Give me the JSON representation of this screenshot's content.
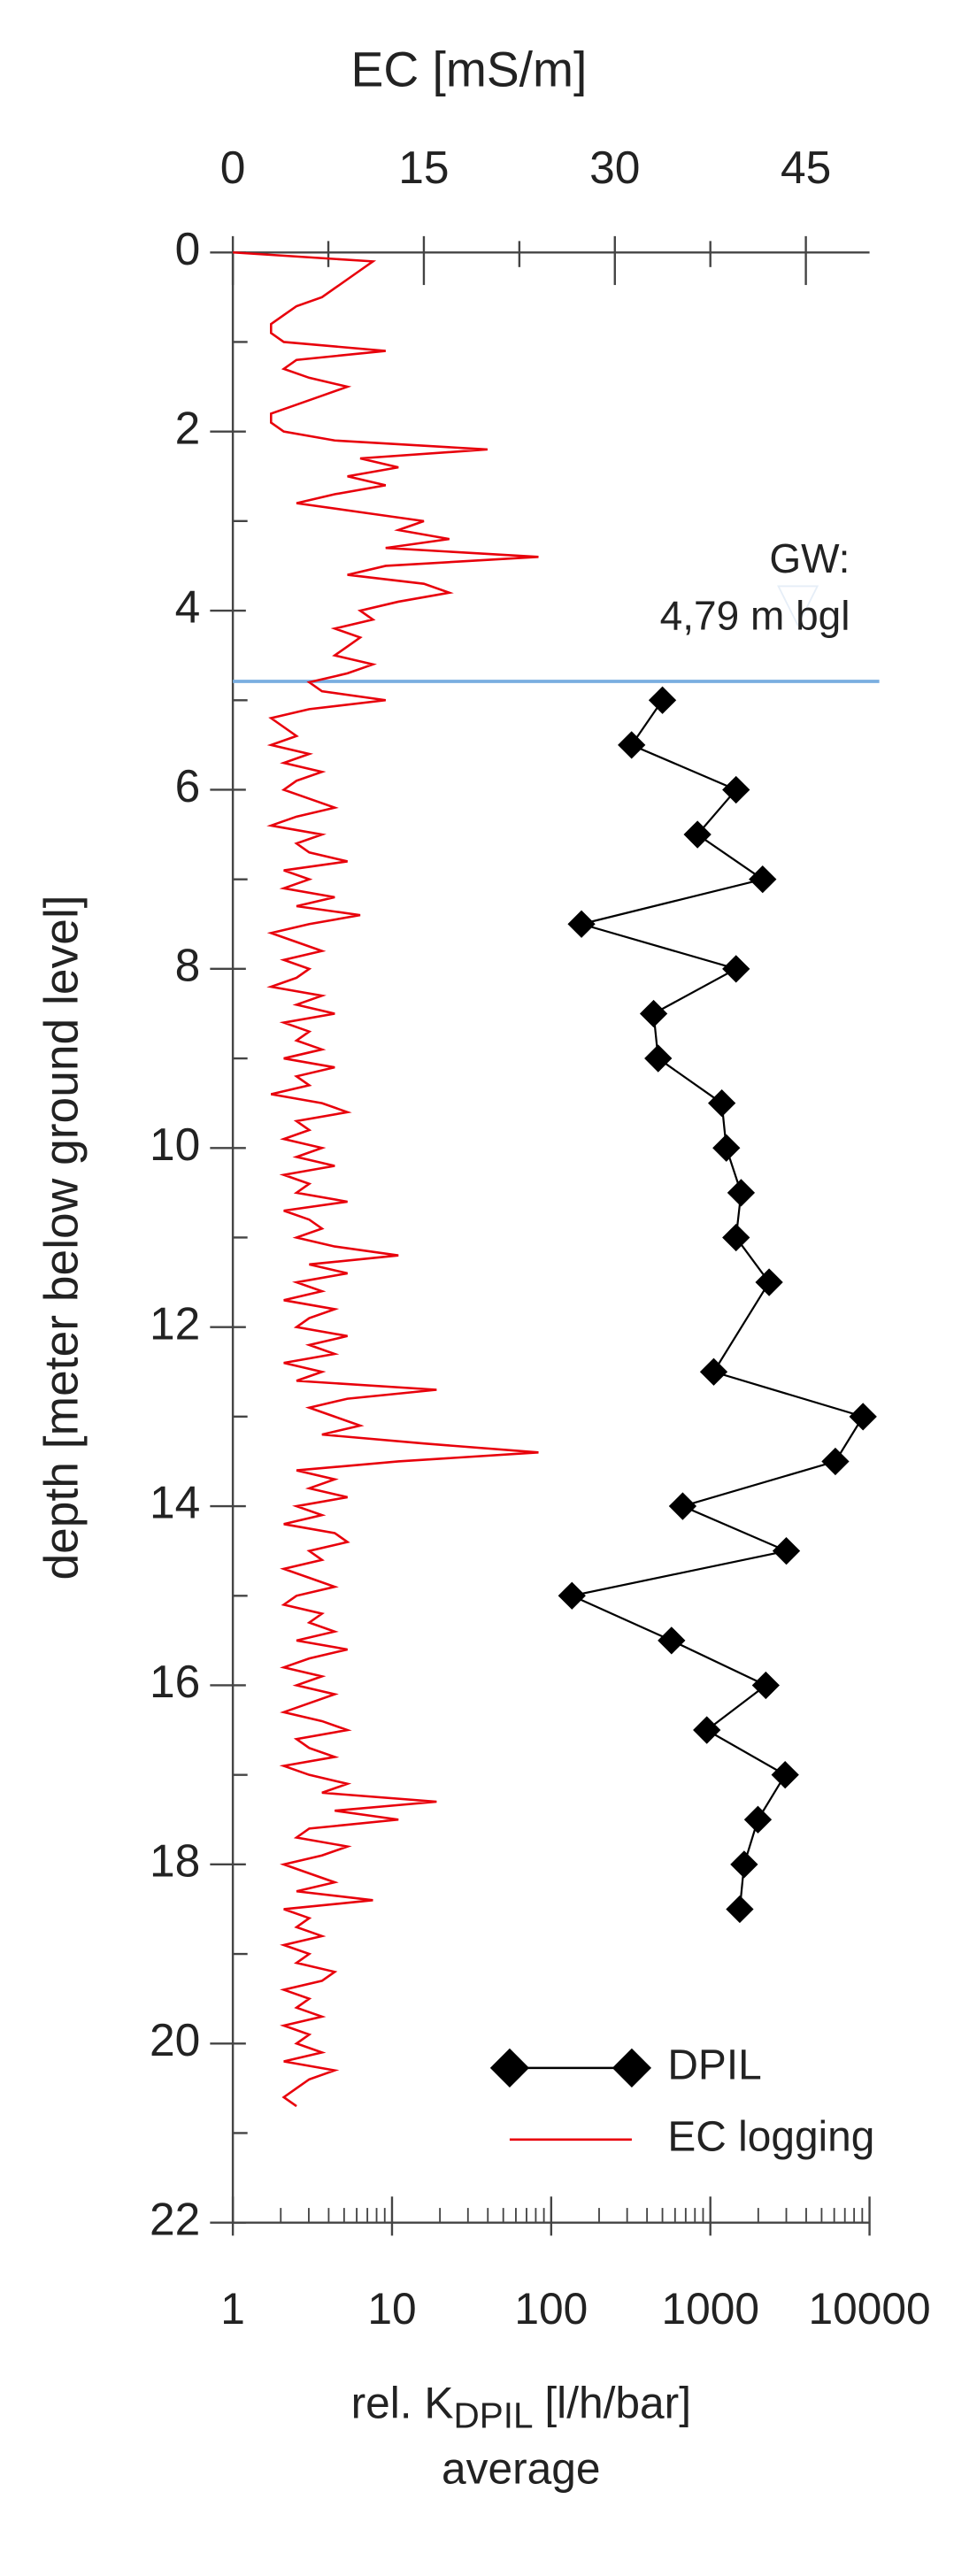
{
  "chart_data": {
    "type": "depth-profile",
    "title": "EC [mS/m]",
    "title_color": "#e8000b",
    "y_label": "depth [meter below ground level]",
    "x2_label": {
      "main": "rel. K",
      "sub": "DPIL",
      "unit": "[l/h/bar]",
      "line2": "average"
    },
    "ylim": [
      0,
      22
    ],
    "yticks": [
      0,
      2,
      4,
      6,
      8,
      10,
      12,
      14,
      16,
      18,
      20,
      22
    ],
    "yminorticks": [
      1,
      3,
      5,
      7,
      9,
      11,
      13,
      15,
      17,
      19,
      21
    ],
    "xlim": [
      0,
      50
    ],
    "xticks": [
      0,
      15,
      30,
      45
    ],
    "xminorticks": [
      7.5,
      22.5,
      37.5
    ],
    "x2lim": [
      1,
      10000
    ],
    "x2_log": true,
    "x2ticks": [
      1,
      10,
      100,
      1000,
      10000
    ],
    "x2minorticks": [
      2,
      3,
      4,
      5,
      6,
      7,
      8,
      9,
      20,
      30,
      40,
      50,
      60,
      70,
      80,
      90,
      200,
      300,
      400,
      500,
      600,
      700,
      800,
      900,
      2000,
      3000,
      4000,
      5000,
      6000,
      7000,
      8000,
      9000
    ],
    "legend": "lower right",
    "groundwater": {
      "depth": 4.79,
      "label": [
        "GW:",
        "4,79 m bgl"
      ],
      "color": "#7aaee0"
    },
    "series": [
      {
        "name": "DPIL",
        "color": "#000000",
        "axis": "x2",
        "marker": "diamond",
        "depth": [
          5,
          5.5,
          6,
          6.5,
          7,
          7.5,
          8,
          8.5,
          9,
          9.5,
          10,
          10.5,
          11,
          11.5,
          12.5,
          13,
          13.5,
          14,
          14.5,
          15,
          15.5,
          16,
          16.5,
          17,
          17.5,
          18,
          18.5
        ],
        "values": [
          500,
          320,
          1450,
          830,
          2130,
          155,
          1450,
          440,
          470,
          1180,
          1260,
          1560,
          1450,
          2340,
          1050,
          9100,
          6100,
          670,
          3000,
          135,
          570,
          2230,
          950,
          2950,
          1990,
          1630,
          1530
        ]
      },
      {
        "name": "EC logging",
        "color": "#e8000b",
        "axis": "x",
        "marker": "none",
        "depth": [
          0,
          0.1,
          0.2,
          0.3,
          0.4,
          0.5,
          0.6,
          0.7,
          0.8,
          0.9,
          1,
          1.1,
          1.2,
          1.3,
          1.4,
          1.5,
          1.6,
          1.7,
          1.8,
          1.9,
          2,
          2.1,
          2.2,
          2.3,
          2.4,
          2.5,
          2.6,
          2.7,
          2.8,
          2.9,
          3,
          3.1,
          3.2,
          3.3,
          3.4,
          3.5,
          3.6,
          3.7,
          3.8,
          3.9,
          4,
          4.1,
          4.2,
          4.3,
          4.4,
          4.5,
          4.6,
          4.7,
          4.8,
          4.9,
          5,
          5.1,
          5.2,
          5.3,
          5.4,
          5.5,
          5.6,
          5.7,
          5.8,
          5.9,
          6,
          6.1,
          6.2,
          6.3,
          6.4,
          6.5,
          6.6,
          6.7,
          6.8,
          6.9,
          7,
          7.1,
          7.2,
          7.3,
          7.4,
          7.5,
          7.6,
          7.7,
          7.8,
          7.9,
          8,
          8.1,
          8.2,
          8.3,
          8.4,
          8.5,
          8.6,
          8.7,
          8.8,
          8.9,
          9,
          9.1,
          9.2,
          9.3,
          9.4,
          9.5,
          9.6,
          9.7,
          9.8,
          9.9,
          10,
          10.1,
          10.2,
          10.3,
          10.4,
          10.5,
          10.6,
          10.7,
          10.8,
          10.9,
          11,
          11.1,
          11.2,
          11.3,
          11.4,
          11.5,
          11.6,
          11.7,
          11.8,
          11.9,
          12,
          12.1,
          12.2,
          12.3,
          12.4,
          12.5,
          12.6,
          12.7,
          12.8,
          12.9,
          13,
          13.1,
          13.2,
          13.3,
          13.4,
          13.5,
          13.6,
          13.7,
          13.8,
          13.9,
          14,
          14.1,
          14.2,
          14.3,
          14.4,
          14.5,
          14.6,
          14.7,
          14.8,
          14.9,
          15,
          15.1,
          15.2,
          15.3,
          15.4,
          15.5,
          15.6,
          15.7,
          15.8,
          15.9,
          16,
          16.1,
          16.2,
          16.3,
          16.4,
          16.5,
          16.6,
          16.7,
          16.8,
          16.9,
          17,
          17.1,
          17.2,
          17.3,
          17.4,
          17.5,
          17.6,
          17.7,
          17.8,
          17.9,
          18,
          18.1,
          18.2,
          18.3,
          18.4,
          18.5,
          18.6,
          18.7,
          18.8,
          18.9,
          19,
          19.1,
          19.2,
          19.3,
          19.4,
          19.5,
          19.6,
          19.7,
          19.8,
          19.9,
          20,
          20.1,
          20.2,
          20.3,
          20.4,
          20.5,
          20.6,
          20.7
        ],
        "values": [
          0,
          11,
          10,
          9,
          8,
          7,
          5,
          4,
          3,
          3,
          4,
          12,
          5,
          4,
          6,
          9,
          7,
          5,
          3,
          3,
          4,
          8,
          20,
          10,
          13,
          9,
          12,
          8,
          5,
          10,
          15,
          13,
          17,
          12,
          24,
          12,
          9,
          15,
          17,
          13,
          10,
          11,
          8,
          10,
          9,
          8,
          11,
          9,
          6,
          7,
          12,
          6,
          3,
          4,
          5,
          3,
          6,
          4,
          7,
          5,
          4,
          6,
          8,
          5,
          3,
          7,
          5,
          6,
          9,
          4,
          6,
          4,
          8,
          5,
          10,
          6,
          3,
          5,
          7,
          4,
          6,
          5,
          3,
          7,
          5,
          8,
          4,
          6,
          5,
          7,
          4,
          8,
          5,
          6,
          3,
          7,
          9,
          5,
          6,
          4,
          7,
          5,
          8,
          4,
          6,
          5,
          9,
          4,
          6,
          7,
          5,
          8,
          13,
          6,
          9,
          5,
          7,
          4,
          8,
          6,
          5,
          9,
          6,
          8,
          4,
          7,
          5,
          16,
          9,
          6,
          8,
          10,
          7,
          15,
          24,
          13,
          5,
          8,
          6,
          9,
          5,
          7,
          4,
          8,
          9,
          6,
          7,
          4,
          6,
          8,
          5,
          4,
          7,
          6,
          8,
          5,
          9,
          6,
          4,
          7,
          5,
          8,
          6,
          4,
          7,
          9,
          5,
          6,
          8,
          4,
          6,
          9,
          7,
          16,
          8,
          13,
          6,
          5,
          9,
          7,
          4,
          6,
          8,
          5,
          11,
          4,
          6,
          5,
          7,
          4,
          6,
          5,
          8,
          7,
          4,
          6,
          5,
          7,
          4,
          6,
          5,
          7,
          4,
          8,
          6,
          5,
          4,
          5
        ]
      }
    ]
  }
}
